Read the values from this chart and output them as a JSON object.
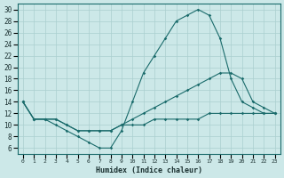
{
  "xlabel": "Humidex (Indice chaleur)",
  "bg_color": "#cce8e8",
  "grid_color": "#aacfcf",
  "line_color": "#1a6b6b",
  "xlim": [
    -0.5,
    23.5
  ],
  "ylim": [
    5,
    31
  ],
  "xticks": [
    0,
    1,
    2,
    3,
    4,
    5,
    6,
    7,
    8,
    9,
    10,
    11,
    12,
    13,
    14,
    15,
    16,
    17,
    18,
    19,
    20,
    21,
    22,
    23
  ],
  "yticks": [
    6,
    8,
    10,
    12,
    14,
    16,
    18,
    20,
    22,
    24,
    26,
    28,
    30
  ],
  "curve1_x": [
    0,
    1,
    2,
    3,
    4,
    5,
    6,
    7,
    8,
    9,
    10,
    11,
    12,
    13,
    14,
    15,
    16,
    17,
    18,
    19,
    20,
    21,
    22,
    23
  ],
  "curve1_y": [
    14,
    11,
    11,
    10,
    9,
    8,
    7,
    6,
    6,
    9,
    14,
    19,
    22,
    25,
    28,
    29,
    30,
    29,
    25,
    18,
    14,
    13,
    12,
    12
  ],
  "curve2_x": [
    0,
    1,
    2,
    3,
    4,
    5,
    6,
    7,
    8,
    9,
    10,
    11,
    12,
    13,
    14,
    15,
    16,
    17,
    18,
    19,
    20,
    21,
    22,
    23
  ],
  "curve2_y": [
    14,
    11,
    11,
    11,
    10,
    9,
    9,
    9,
    9,
    10,
    11,
    12,
    13,
    14,
    15,
    16,
    17,
    18,
    19,
    19,
    18,
    14,
    13,
    12
  ],
  "curve3_x": [
    0,
    1,
    2,
    3,
    4,
    5,
    6,
    7,
    8,
    9,
    10,
    11,
    12,
    13,
    14,
    15,
    16,
    17,
    18,
    19,
    20,
    21,
    22,
    23
  ],
  "curve3_y": [
    14,
    11,
    11,
    11,
    10,
    9,
    9,
    9,
    9,
    10,
    10,
    10,
    11,
    11,
    11,
    11,
    11,
    12,
    12,
    12,
    12,
    12,
    12,
    12
  ]
}
